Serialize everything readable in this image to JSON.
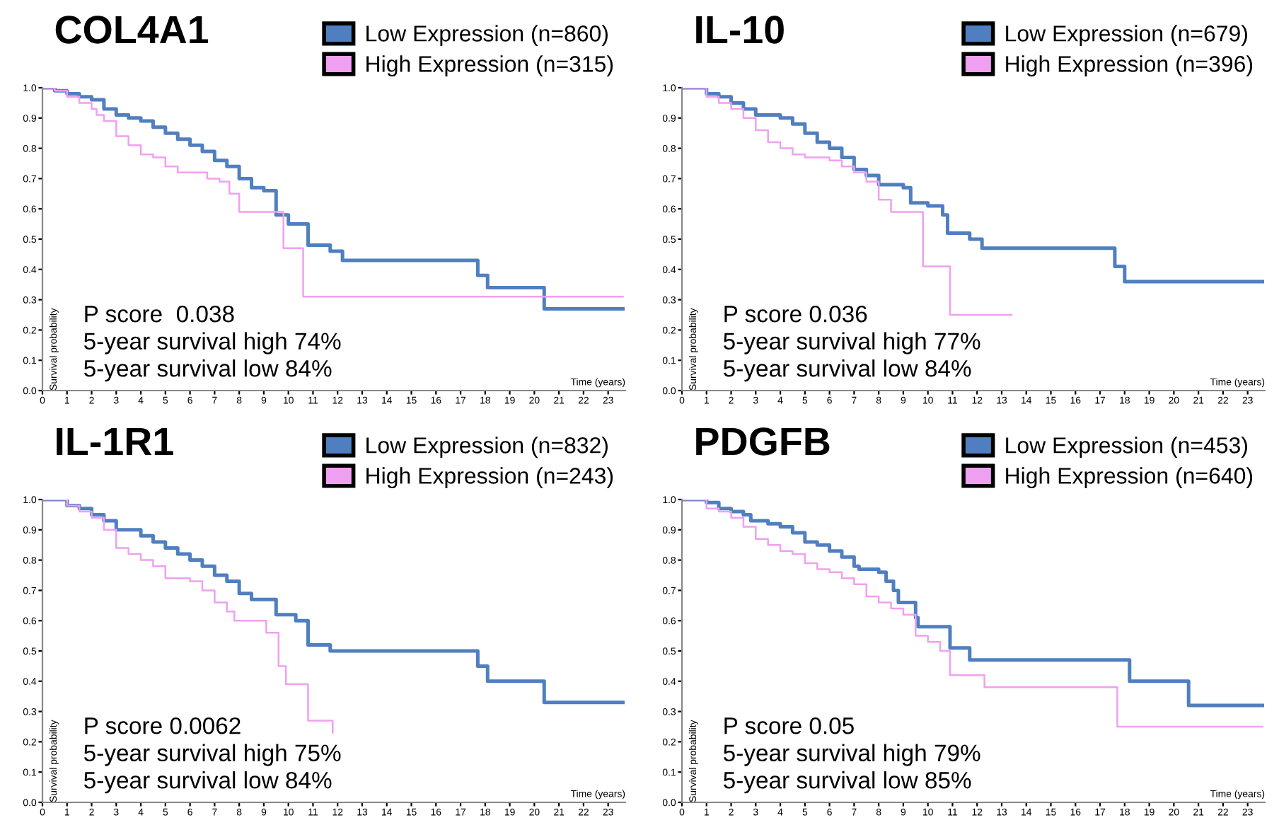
{
  "chart_data": [
    {
      "type": "step",
      "title": "COL4A1",
      "xlabel": "Time (years)",
      "ylabel": "Survival probability",
      "legend": "top right",
      "grid": false,
      "xlim": [
        0,
        23.7
      ],
      "xticks": [
        0,
        1,
        2,
        3,
        4,
        5,
        6,
        7,
        8,
        9,
        10,
        11,
        12,
        13,
        14,
        15,
        16,
        17,
        18,
        19,
        20,
        21,
        22,
        23
      ],
      "ylim": [
        0,
        1.0
      ],
      "yticks": [
        {
          "value": 0,
          "label": "0.0"
        },
        {
          "value": 0.1,
          "label": "0.1"
        },
        {
          "value": 0.2,
          "label": "0.2"
        },
        {
          "value": 0.3,
          "label": "0.3"
        },
        {
          "value": 0.4,
          "label": "0.4"
        },
        {
          "value": 0.5,
          "label": "0.5"
        },
        {
          "value": 0.6,
          "label": "0.6"
        },
        {
          "value": 0.7,
          "label": "0.7"
        },
        {
          "value": 0.8,
          "label": "0.8"
        },
        {
          "value": 0.9,
          "label": "0.9"
        },
        {
          "value": 1.0,
          "label": "1.0"
        }
      ],
      "annotations": [
        "P score  0.038",
        "5-year survival high 74%",
        "5-year survival low 84%"
      ],
      "series": [
        {
          "name": "Low Expression (n=860)",
          "color": "#4f7fc0",
          "x": [
            0,
            0.5,
            1,
            1.5,
            2,
            2.5,
            3,
            3.5,
            4,
            4.5,
            5,
            5.5,
            6,
            6.5,
            7,
            7.5,
            8,
            8.5,
            9,
            9.5,
            10,
            10.8,
            11.7,
            12.2,
            17.7,
            18.1,
            20.4,
            23.6
          ],
          "values": [
            1.0,
            0.99,
            0.98,
            0.97,
            0.96,
            0.93,
            0.91,
            0.9,
            0.89,
            0.87,
            0.85,
            0.83,
            0.81,
            0.79,
            0.76,
            0.74,
            0.7,
            0.67,
            0.66,
            0.58,
            0.55,
            0.48,
            0.46,
            0.43,
            0.38,
            0.34,
            0.27,
            0.27
          ]
        },
        {
          "name": "High Expression (n=315)",
          "color": "#f0a0f0",
          "x": [
            0,
            0.5,
            1,
            1.5,
            2,
            2.2,
            2.5,
            3,
            3.5,
            4,
            4.5,
            5,
            5.5,
            6.7,
            7.2,
            7.6,
            8,
            9.8,
            10.6,
            23.6
          ],
          "values": [
            1.0,
            0.99,
            0.97,
            0.95,
            0.93,
            0.91,
            0.89,
            0.84,
            0.81,
            0.78,
            0.77,
            0.74,
            0.72,
            0.7,
            0.69,
            0.65,
            0.59,
            0.47,
            0.31,
            0.31
          ]
        }
      ]
    },
    {
      "type": "step",
      "title": "IL-10",
      "xlabel": "Time (years)",
      "ylabel": "Survival probability",
      "legend": "top right",
      "grid": false,
      "xlim": [
        0,
        23.7
      ],
      "xticks": [
        0,
        1,
        2,
        3,
        4,
        5,
        6,
        7,
        8,
        9,
        10,
        11,
        12,
        13,
        14,
        15,
        16,
        17,
        18,
        19,
        20,
        21,
        22,
        23
      ],
      "ylim": [
        0,
        1.0
      ],
      "yticks": [
        {
          "value": 0,
          "label": "0.0"
        },
        {
          "value": 0.1,
          "label": "0.1"
        },
        {
          "value": 0.2,
          "label": "0.2"
        },
        {
          "value": 0.3,
          "label": "0.3"
        },
        {
          "value": 0.4,
          "label": "0.4"
        },
        {
          "value": 0.5,
          "label": "0.5"
        },
        {
          "value": 0.6,
          "label": "0.6"
        },
        {
          "value": 0.7,
          "label": "0.7"
        },
        {
          "value": 0.8,
          "label": "0.8"
        },
        {
          "value": 0.9,
          "label": "0.9"
        },
        {
          "value": 1.0,
          "label": "1.0"
        }
      ],
      "annotations": [
        "P score 0.036",
        "5-year survival high 77%",
        "5-year survival low 84%"
      ],
      "series": [
        {
          "name": "Low Expression (n=679)",
          "color": "#4f7fc0",
          "x": [
            0,
            1,
            1.5,
            2,
            2.5,
            3,
            4,
            4.5,
            5,
            5.5,
            6,
            6.5,
            7,
            7.5,
            8,
            9,
            9.3,
            10,
            10.6,
            10.8,
            11.7,
            12.2,
            17.6,
            18.0,
            23.6
          ],
          "values": [
            1.0,
            0.98,
            0.97,
            0.95,
            0.93,
            0.91,
            0.9,
            0.88,
            0.85,
            0.82,
            0.8,
            0.77,
            0.73,
            0.71,
            0.68,
            0.67,
            0.62,
            0.61,
            0.58,
            0.52,
            0.5,
            0.47,
            0.41,
            0.36,
            0.36
          ]
        },
        {
          "name": "High Expression (n=396)",
          "color": "#f0a0f0",
          "x": [
            0,
            1,
            1.5,
            2,
            2.5,
            3,
            3.5,
            4,
            4.5,
            5,
            6,
            6.5,
            7,
            7.5,
            8,
            8.5,
            9.8,
            10.9,
            13.4
          ],
          "values": [
            1.0,
            0.97,
            0.95,
            0.93,
            0.9,
            0.86,
            0.82,
            0.8,
            0.78,
            0.77,
            0.76,
            0.74,
            0.72,
            0.69,
            0.63,
            0.59,
            0.41,
            0.25,
            0.25
          ]
        }
      ]
    },
    {
      "type": "step",
      "title": "IL-1R1",
      "xlabel": "Time (years)",
      "ylabel": "Survival probability",
      "legend": "top right",
      "grid": false,
      "xlim": [
        0,
        23.7
      ],
      "xticks": [
        0,
        1,
        2,
        3,
        4,
        5,
        6,
        7,
        8,
        9,
        10,
        11,
        12,
        13,
        14,
        15,
        16,
        17,
        18,
        19,
        20,
        21,
        22,
        23
      ],
      "ylim": [
        0,
        1.0
      ],
      "yticks": [
        {
          "value": 0,
          "label": "0.0"
        },
        {
          "value": 0.1,
          "label": "0.1"
        },
        {
          "value": 0.2,
          "label": "0.2"
        },
        {
          "value": 0.3,
          "label": "0.3"
        },
        {
          "value": 0.4,
          "label": "0.4"
        },
        {
          "value": 0.5,
          "label": "0.5"
        },
        {
          "value": 0.6,
          "label": "0.6"
        },
        {
          "value": 0.7,
          "label": "0.7"
        },
        {
          "value": 0.8,
          "label": "0.8"
        },
        {
          "value": 0.9,
          "label": "0.9"
        },
        {
          "value": 1.0,
          "label": "1.0"
        }
      ],
      "annotations": [
        "P score 0.0062",
        "5-year survival high 75%",
        "5-year survival low 84%"
      ],
      "series": [
        {
          "name": "Low Expression (n=832)",
          "color": "#4f7fc0",
          "x": [
            0,
            1,
            1.5,
            2,
            2.5,
            3,
            4,
            4.5,
            5,
            5.5,
            6,
            6.5,
            7,
            7.5,
            8,
            8.5,
            9.5,
            10.3,
            10.8,
            11.7,
            17.7,
            18.1,
            20.4,
            23.6
          ],
          "values": [
            1.0,
            0.98,
            0.97,
            0.95,
            0.93,
            0.9,
            0.88,
            0.86,
            0.84,
            0.82,
            0.8,
            0.78,
            0.75,
            0.73,
            0.69,
            0.67,
            0.62,
            0.6,
            0.52,
            0.5,
            0.45,
            0.4,
            0.33,
            0.33
          ]
        },
        {
          "name": "High Expression (n=243)",
          "color": "#f0a0f0",
          "x": [
            0,
            1,
            1.5,
            2,
            2.5,
            3,
            3.5,
            4,
            4.5,
            5,
            6,
            6.5,
            7,
            7.5,
            7.8,
            9.1,
            9.6,
            9.9,
            10.8,
            11.8
          ],
          "values": [
            1.0,
            0.98,
            0.96,
            0.94,
            0.9,
            0.84,
            0.82,
            0.8,
            0.78,
            0.74,
            0.73,
            0.7,
            0.66,
            0.63,
            0.6,
            0.56,
            0.45,
            0.39,
            0.27,
            0.23
          ]
        }
      ]
    },
    {
      "type": "step",
      "title": "PDGFB",
      "xlabel": "Time (years)",
      "ylabel": "Survival probability",
      "legend": "top right",
      "grid": false,
      "xlim": [
        0,
        23.7
      ],
      "xticks": [
        0,
        1,
        2,
        3,
        4,
        5,
        6,
        7,
        8,
        9,
        10,
        11,
        12,
        13,
        14,
        15,
        16,
        17,
        18,
        19,
        20,
        21,
        22,
        23
      ],
      "ylim": [
        0,
        1.0
      ],
      "yticks": [
        {
          "value": 0,
          "label": "0.0"
        },
        {
          "value": 0.1,
          "label": "0.1"
        },
        {
          "value": 0.2,
          "label": "0.2"
        },
        {
          "value": 0.3,
          "label": "0.3"
        },
        {
          "value": 0.4,
          "label": "0.4"
        },
        {
          "value": 0.5,
          "label": "0.5"
        },
        {
          "value": 0.6,
          "label": "0.6"
        },
        {
          "value": 0.7,
          "label": "0.7"
        },
        {
          "value": 0.8,
          "label": "0.8"
        },
        {
          "value": 0.9,
          "label": "0.9"
        },
        {
          "value": 1.0,
          "label": "1.0"
        }
      ],
      "annotations": [
        "P score 0.05",
        "5-year survival high 79%",
        "5-year survival low 85%"
      ],
      "series": [
        {
          "name": "Low Expression (n=453)",
          "color": "#4f7fc0",
          "x": [
            0,
            1,
            1.5,
            2,
            2.5,
            2.8,
            3.5,
            4,
            4.5,
            5,
            5.5,
            6,
            6.5,
            7,
            7.2,
            8,
            8.3,
            8.6,
            8.8,
            9.5,
            9.6,
            10.9,
            11.7,
            18.2,
            20.6,
            23.6
          ],
          "values": [
            1.0,
            0.99,
            0.97,
            0.96,
            0.95,
            0.93,
            0.92,
            0.91,
            0.89,
            0.86,
            0.85,
            0.83,
            0.81,
            0.78,
            0.77,
            0.76,
            0.73,
            0.7,
            0.66,
            0.61,
            0.58,
            0.51,
            0.47,
            0.4,
            0.32,
            0.32
          ]
        },
        {
          "name": "High Expression (n=640)",
          "color": "#f0a0f0",
          "x": [
            0,
            1,
            1.5,
            2,
            2.5,
            3,
            3.5,
            4,
            4.5,
            5,
            5.5,
            6,
            6.5,
            7,
            7.5,
            8,
            8.5,
            9,
            9.5,
            10,
            10.5,
            10.9,
            12.3,
            17.7,
            23.6
          ],
          "values": [
            1.0,
            0.97,
            0.96,
            0.94,
            0.91,
            0.87,
            0.85,
            0.83,
            0.82,
            0.79,
            0.77,
            0.76,
            0.74,
            0.72,
            0.68,
            0.66,
            0.64,
            0.62,
            0.55,
            0.53,
            0.5,
            0.42,
            0.38,
            0.25,
            0.25
          ]
        }
      ]
    }
  ]
}
